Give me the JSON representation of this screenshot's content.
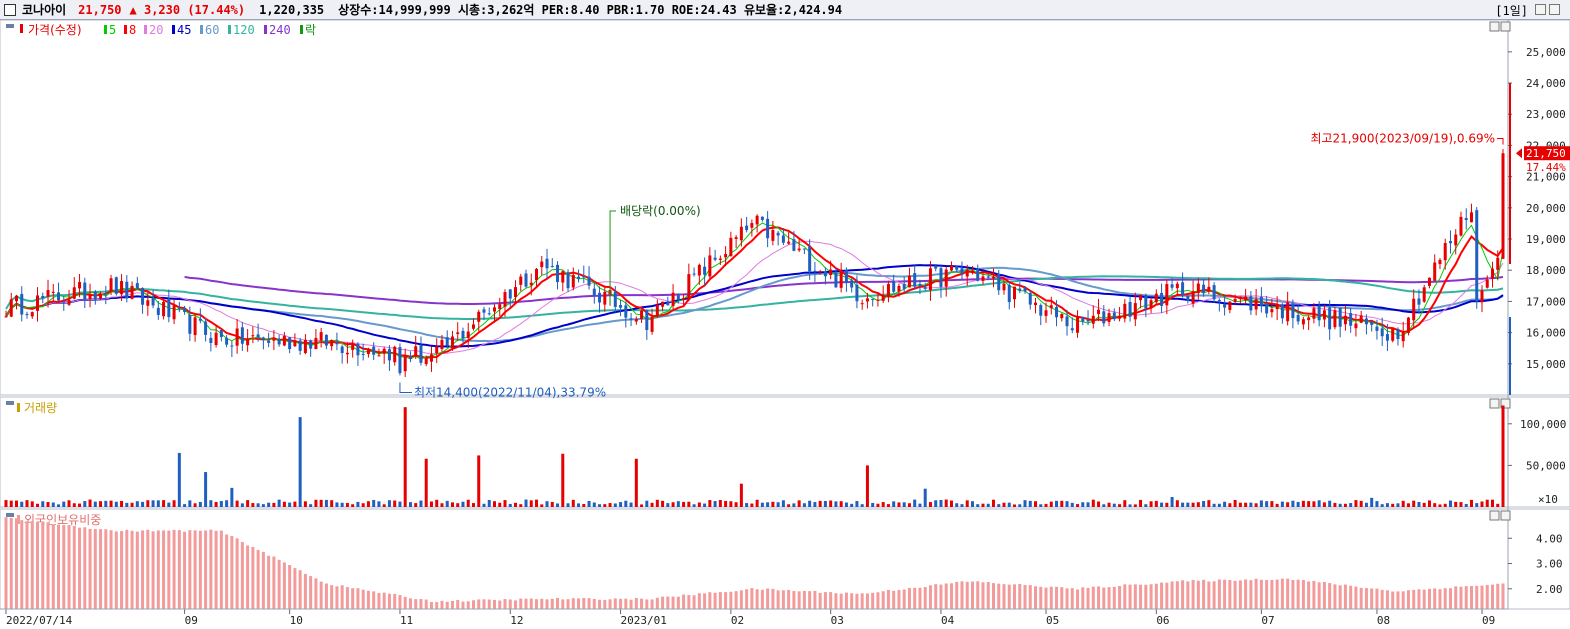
{
  "header": {
    "name": "코나아이",
    "price": "21,750",
    "change": "▲ 3,230 (17.44%)",
    "volume": "1,220,335",
    "stats": "상장수:14,999,999 시총:3,262억 PER:8.40 PBR:1.70 ROE:24.43 유보율:2,424.94",
    "period": "[1일]"
  },
  "legend": {
    "price_label": "가격(수정)",
    "ma": [
      {
        "label": "5",
        "color": "#00cc00"
      },
      {
        "label": "8",
        "color": "#ff0000"
      },
      {
        "label": "20",
        "color": "#e07ae0"
      },
      {
        "label": "45",
        "color": "#0000cc"
      },
      {
        "label": "60",
        "color": "#6699cc"
      },
      {
        "label": "120",
        "color": "#33b3a0"
      },
      {
        "label": "240",
        "color": "#8833cc"
      }
    ],
    "ex_label": "락",
    "volume_label": "거래량",
    "foreign_label": "외국인보유비중"
  },
  "annotations": {
    "high": "최고21,900(2023/09/19),0.69%",
    "low": "최저14,400(2022/11/04),33.79%",
    "dividend": "배당락(0.00%)",
    "last_price": "21,750",
    "last_pct": "17.44%"
  },
  "colors": {
    "up": "#e60000",
    "down": "#1f5fbf",
    "foreign": "#f39a9a"
  },
  "chart_data": [
    {
      "type": "candlestick",
      "title": "가격(수정)",
      "x_labels": [
        "2022/07/14",
        "09",
        "10",
        "11",
        "12",
        "2023/01",
        "02",
        "03",
        "04",
        "05",
        "06",
        "07",
        "08",
        "09"
      ],
      "y_ticks": [
        "15,000",
        "16,000",
        "17,000",
        "18,000",
        "19,000",
        "20,000",
        "21,000",
        "22,000",
        "23,000",
        "24,000",
        "25,000"
      ],
      "ylim": [
        14000,
        25700
      ],
      "monthly_closes": [
        {
          "x": "2022/07",
          "close": 16800
        },
        {
          "x": "2022/08",
          "close": 17500
        },
        {
          "x": "2022/09",
          "close": 15800
        },
        {
          "x": "2022/10",
          "close": 15700
        },
        {
          "x": "2022/11",
          "close": 15200
        },
        {
          "x": "2022/12",
          "close": 18200
        },
        {
          "x": "2023/01",
          "close": 16400
        },
        {
          "x": "2023/02",
          "close": 19500
        },
        {
          "x": "2023/03",
          "close": 17200
        },
        {
          "x": "2023/04",
          "close": 18000
        },
        {
          "x": "2023/05",
          "close": 16200
        },
        {
          "x": "2023/06",
          "close": 17400
        },
        {
          "x": "2023/07",
          "close": 16700
        },
        {
          "x": "2023/08",
          "close": 16000
        },
        {
          "x": "2023/09",
          "close": 21750
        }
      ],
      "high": 21900,
      "low": 14400,
      "last": 21750
    },
    {
      "type": "bar",
      "title": "거래량",
      "y_ticks": [
        "100,000",
        "50,000",
        "×10"
      ],
      "ylim": [
        0,
        125000
      ],
      "last": 122034
    },
    {
      "type": "bar",
      "title": "외국인보유비중",
      "y_ticks": [
        "4.00",
        "3.00",
        "2.00"
      ],
      "ylim": [
        1.2,
        5.0
      ],
      "monthly": [
        {
          "x": "2022/07",
          "value": 4.8
        },
        {
          "x": "2022/08",
          "value": 4.3
        },
        {
          "x": "2022/09",
          "value": 4.3
        },
        {
          "x": "2022/10",
          "value": 2.2
        },
        {
          "x": "2022/11",
          "value": 1.5
        },
        {
          "x": "2022/12",
          "value": 1.6
        },
        {
          "x": "2023/01",
          "value": 1.6
        },
        {
          "x": "2023/02",
          "value": 2.0
        },
        {
          "x": "2023/03",
          "value": 1.8
        },
        {
          "x": "2023/04",
          "value": 2.3
        },
        {
          "x": "2023/05",
          "value": 2.0
        },
        {
          "x": "2023/06",
          "value": 2.3
        },
        {
          "x": "2023/07",
          "value": 2.4
        },
        {
          "x": "2023/08",
          "value": 1.9
        },
        {
          "x": "2023/09",
          "value": 2.2
        }
      ]
    }
  ]
}
